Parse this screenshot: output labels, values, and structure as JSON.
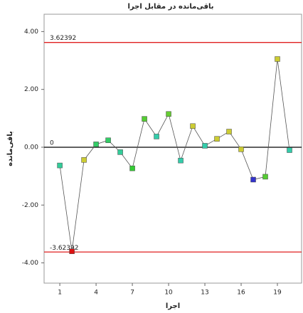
{
  "chart_data": {
    "type": "line",
    "title": "باقی‌مانده در مقابل اجرا",
    "x_label": "اجرا",
    "y_label": "باقی‌مانده",
    "x": [
      1,
      2,
      3,
      4,
      5,
      6,
      7,
      8,
      9,
      10,
      11,
      12,
      13,
      14,
      15,
      16,
      17,
      18,
      19,
      20
    ],
    "series": [
      {
        "color": "#555555",
        "values": [
          -0.63,
          -3.6,
          -0.44,
          0.1,
          0.24,
          -0.17,
          -0.73,
          0.98,
          0.37,
          1.15,
          -0.46,
          0.73,
          0.05,
          0.29,
          0.54,
          -0.07,
          -1.12,
          -1.02,
          3.05,
          -0.1
        ],
        "point_colors": [
          "#33cc99",
          "#dd1111",
          "#cccc33",
          "#33cc66",
          "#33cc66",
          "#33cc99",
          "#33cc33",
          "#55cc33",
          "#33ccaa",
          "#66cc33",
          "#33ccaa",
          "#cccc33",
          "#33ccaa",
          "#cccc33",
          "#cccc33",
          "#cccc33",
          "#3333cc",
          "#55cc33",
          "#cccc33",
          "#33ccaa"
        ]
      }
    ],
    "reference_lines": [
      {
        "value": 3.62392,
        "color": "#e02020"
      },
      {
        "value": 0,
        "color": "#000000"
      },
      {
        "value": -3.62392,
        "color": "#e02020"
      }
    ],
    "xlim": [
      -0.3,
      21
    ],
    "ylim": [
      -4.7,
      4.6
    ],
    "xticks": [
      1,
      4,
      7,
      10,
      13,
      16,
      19
    ],
    "yticks": [
      {
        "value": -4,
        "label": "-4.00"
      },
      {
        "value": -2,
        "label": "-2.00"
      },
      {
        "value": 0,
        "label": "0.00"
      },
      {
        "value": 2,
        "label": "2.00"
      },
      {
        "value": 4,
        "label": "4.00"
      }
    ]
  }
}
